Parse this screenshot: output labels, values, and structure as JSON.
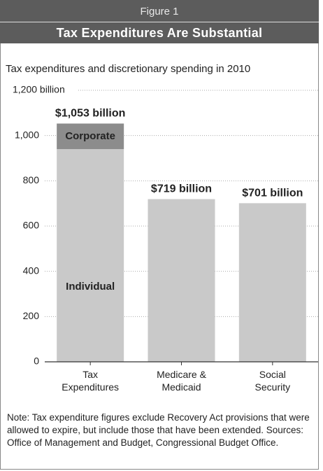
{
  "chart_data": {
    "type": "bar",
    "figure_label": "Figure 1",
    "title": "Tax Expenditures Are Substantial",
    "subtitle": "Tax expenditures and discretionary spending in 2010",
    "categories": [
      "Tax Expenditures",
      "Medicare & Medicaid",
      "Social Security"
    ],
    "values": [
      1053,
      719,
      701
    ],
    "value_labels": [
      "$1,053 billion",
      "$719 billion",
      "$701 billion"
    ],
    "color": "#c9c9c9",
    "series": [
      {
        "name": "Individual",
        "color": "#c9c9c9",
        "values": [
          940,
          null,
          null
        ]
      },
      {
        "name": "Corporate",
        "color": "#8c8c8c",
        "values": [
          113,
          null,
          null
        ]
      }
    ],
    "ylim": [
      0,
      1200
    ],
    "yticks": [
      0,
      200,
      400,
      600,
      800,
      {
        "value": 1000,
        "label": "1,000"
      },
      {
        "value": 1200,
        "label": "1,200 billion"
      }
    ],
    "grid": true,
    "note": "Note: Tax expenditure figures exclude Recovery Act provisions that were allowed to expire, but include those that have been extended. Sources: Office of Management and Budget, Congressional Budget Office."
  }
}
